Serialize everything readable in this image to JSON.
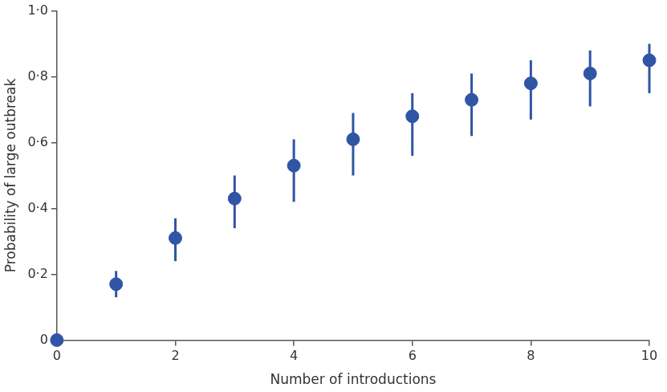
{
  "chart_data": {
    "type": "scatter",
    "x_label": "Number of introductions",
    "y_label": "Probability of large outbreak",
    "x": [
      0,
      1,
      2,
      3,
      4,
      5,
      6,
      7,
      8,
      9,
      10
    ],
    "values": [
      0,
      0.17,
      0.31,
      0.43,
      0.53,
      0.61,
      0.68,
      0.73,
      0.78,
      0.81,
      0.85
    ],
    "error_lower": [
      0,
      0.13,
      0.24,
      0.34,
      0.42,
      0.5,
      0.56,
      0.62,
      0.67,
      0.71,
      0.75
    ],
    "error_upper": [
      0,
      0.21,
      0.37,
      0.5,
      0.61,
      0.69,
      0.75,
      0.81,
      0.85,
      0.88,
      0.9
    ],
    "color": "#2f55a4",
    "marker": "circle",
    "xlim": [
      0,
      10
    ],
    "xticks": [
      0,
      2,
      4,
      6,
      8,
      10
    ],
    "ylim": [
      0,
      1
    ],
    "yticks": [
      0,
      {
        "value": 0.2,
        "label": "0·2"
      },
      {
        "value": 0.4,
        "label": "0·4"
      },
      {
        "value": 0.6,
        "label": "0·6"
      },
      {
        "value": 0.8,
        "label": "0·8"
      },
      {
        "value": 1,
        "label": "1·0"
      }
    ],
    "grid": false
  }
}
